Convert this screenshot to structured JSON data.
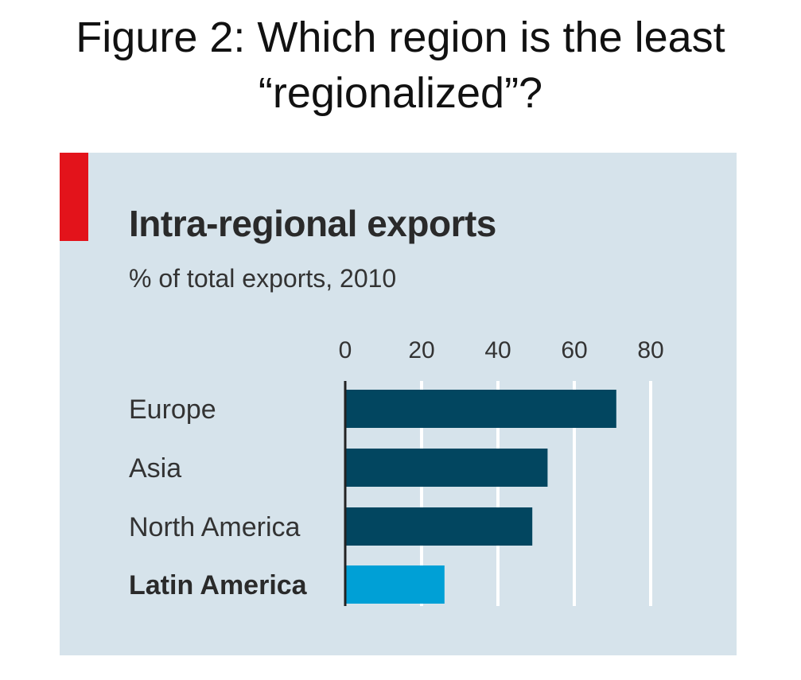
{
  "slide": {
    "title_line1": "Figure 2: Which region is the least",
    "title_line2": "“regionalized”?"
  },
  "chart_data": {
    "type": "bar",
    "orientation": "horizontal",
    "title": "Intra-regional exports",
    "subtitle": "% of total exports, 2010",
    "categories": [
      "Europe",
      "Asia",
      "North America",
      "Latin America"
    ],
    "values": [
      71,
      53,
      49,
      26
    ],
    "highlight": "Latin America",
    "xlim": [
      0,
      80
    ],
    "xticks": [
      0,
      20,
      40,
      60,
      80
    ],
    "grid": true,
    "colors": {
      "bar": "#024660",
      "highlight": "#00a0d6",
      "background": "#d6e3eb",
      "accent": "#e3131b",
      "grid": "#ffffff"
    }
  }
}
